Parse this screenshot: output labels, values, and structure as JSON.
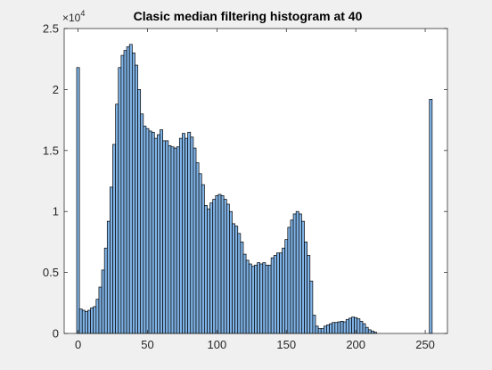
{
  "chart_data": {
    "type": "bar",
    "title": "Clasic median filtering histogram at 40",
    "xlabel": "",
    "ylabel": "",
    "xlim": [
      -10,
      266
    ],
    "ylim": [
      0,
      25000
    ],
    "x_ticks": [
      0,
      50,
      100,
      150,
      200,
      250
    ],
    "y_ticks": [
      0,
      5000,
      10000,
      15000,
      20000,
      25000
    ],
    "x_tick_labels": [
      "0",
      "50",
      "100",
      "150",
      "200",
      "250"
    ],
    "y_tick_labels": [
      "0",
      "0.5",
      "1",
      "1.5",
      "2",
      "2.5"
    ],
    "y_exponent": {
      "base": "×10",
      "power": "4"
    },
    "bin_width": 2,
    "bar_color": "#80b3e6",
    "grid": false,
    "bins": [
      0,
      2,
      4,
      6,
      8,
      10,
      12,
      14,
      16,
      18,
      20,
      22,
      24,
      26,
      28,
      30,
      32,
      34,
      36,
      38,
      40,
      42,
      44,
      46,
      48,
      50,
      52,
      54,
      56,
      58,
      60,
      62,
      64,
      66,
      68,
      70,
      72,
      74,
      76,
      78,
      80,
      82,
      84,
      86,
      88,
      90,
      92,
      94,
      96,
      98,
      100,
      102,
      104,
      106,
      108,
      110,
      112,
      114,
      116,
      118,
      120,
      122,
      124,
      126,
      128,
      130,
      132,
      134,
      136,
      138,
      140,
      142,
      144,
      146,
      148,
      150,
      152,
      154,
      156,
      158,
      160,
      162,
      164,
      166,
      168,
      170,
      172,
      174,
      176,
      178,
      180,
      182,
      184,
      186,
      188,
      190,
      192,
      194,
      196,
      198,
      200,
      202,
      204,
      206,
      208,
      210,
      212,
      214,
      216,
      218,
      220,
      222,
      224,
      226,
      228,
      230,
      232,
      234,
      236,
      238,
      240,
      242,
      244,
      246,
      248,
      250,
      252,
      254
    ],
    "values": [
      21800,
      2000,
      1900,
      1800,
      1900,
      2100,
      2200,
      2800,
      3800,
      5200,
      7000,
      9200,
      12000,
      15500,
      18800,
      21800,
      22800,
      23200,
      23500,
      23700,
      23000,
      22000,
      20000,
      18000,
      17000,
      16800,
      16600,
      16500,
      16000,
      16300,
      16700,
      15800,
      15800,
      15400,
      15300,
      15200,
      15300,
      16000,
      16400,
      16000,
      16500,
      16100,
      15200,
      14000,
      13100,
      12200,
      10500,
      10200,
      10700,
      11000,
      11300,
      11400,
      11300,
      11000,
      10600,
      10000,
      9000,
      8800,
      8200,
      7500,
      6500,
      6000,
      5700,
      5500,
      5600,
      5800,
      5700,
      5800,
      5600,
      5600,
      6200,
      6400,
      6600,
      6600,
      7000,
      7700,
      8700,
      9300,
      9800,
      10000,
      9800,
      9200,
      7500,
      6400,
      4300,
      1500,
      600,
      400,
      400,
      600,
      700,
      800,
      900,
      900,
      950,
      1000,
      950,
      1150,
      1250,
      1350,
      1300,
      1200,
      1000,
      800,
      500,
      300,
      200,
      100,
      0,
      0,
      0,
      0,
      0,
      0,
      0,
      0,
      0,
      0,
      0,
      0,
      0,
      0,
      0,
      0,
      0,
      0,
      0,
      19200
    ]
  }
}
